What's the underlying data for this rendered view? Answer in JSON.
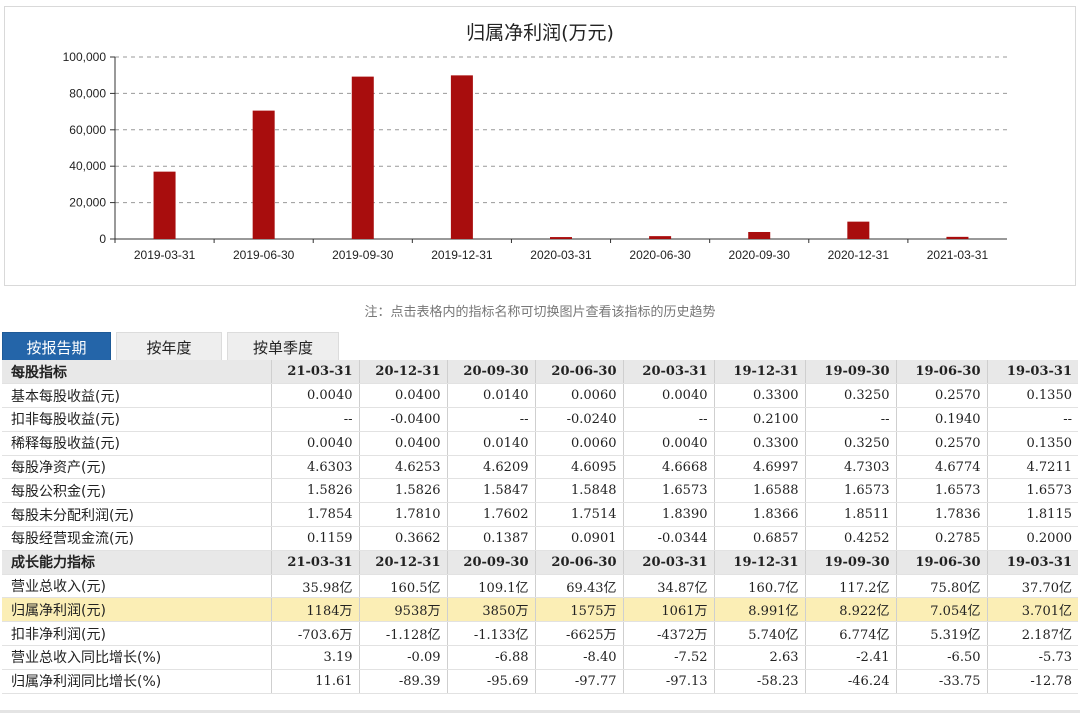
{
  "chart_data": {
    "type": "bar",
    "title": "归属净利润(万元)",
    "categories": [
      "2019-03-31",
      "2019-06-30",
      "2019-09-30",
      "2019-12-31",
      "2020-03-31",
      "2020-06-30",
      "2020-09-30",
      "2020-12-31",
      "2021-03-31"
    ],
    "values": [
      37010,
      70540,
      89220,
      89910,
      1061,
      1575,
      3850,
      9538,
      1184
    ],
    "yticks": [
      "0",
      "20,000",
      "40,000",
      "60,000",
      "80,000",
      "100,000"
    ],
    "ylim": [
      0,
      100000
    ],
    "grid": true,
    "bar_color": "#a80d0d"
  },
  "note": "注：点击表格内的指标名称可切换图片查看该指标的历史趋势",
  "tabs": [
    {
      "label": "按报告期",
      "active": true
    },
    {
      "label": "按年度",
      "active": false
    },
    {
      "label": "按单季度",
      "active": false
    }
  ],
  "table": {
    "rows": [
      {
        "type": "section",
        "cells": [
          "每股指标",
          "21-03-31",
          "20-12-31",
          "20-09-30",
          "20-06-30",
          "20-03-31",
          "19-12-31",
          "19-09-30",
          "19-06-30",
          "19-03-31"
        ]
      },
      {
        "type": "data",
        "cells": [
          "基本每股收益(元)",
          "0.0040",
          "0.0400",
          "0.0140",
          "0.0060",
          "0.0040",
          "0.3300",
          "0.3250",
          "0.2570",
          "0.1350"
        ]
      },
      {
        "type": "data",
        "cells": [
          "扣非每股收益(元)",
          "--",
          "-0.0400",
          "--",
          "-0.0240",
          "--",
          "0.2100",
          "--",
          "0.1940",
          "--"
        ]
      },
      {
        "type": "data",
        "cells": [
          "稀释每股收益(元)",
          "0.0040",
          "0.0400",
          "0.0140",
          "0.0060",
          "0.0040",
          "0.3300",
          "0.3250",
          "0.2570",
          "0.1350"
        ]
      },
      {
        "type": "data",
        "cells": [
          "每股净资产(元)",
          "4.6303",
          "4.6253",
          "4.6209",
          "4.6095",
          "4.6668",
          "4.6997",
          "4.7303",
          "4.6774",
          "4.7211"
        ]
      },
      {
        "type": "data",
        "cells": [
          "每股公积金(元)",
          "1.5826",
          "1.5826",
          "1.5847",
          "1.5848",
          "1.6573",
          "1.6588",
          "1.6573",
          "1.6573",
          "1.6573"
        ]
      },
      {
        "type": "data",
        "cells": [
          "每股未分配利润(元)",
          "1.7854",
          "1.7810",
          "1.7602",
          "1.7514",
          "1.8390",
          "1.8366",
          "1.8511",
          "1.7836",
          "1.8115"
        ]
      },
      {
        "type": "data",
        "cells": [
          "每股经营现金流(元)",
          "0.1159",
          "0.3662",
          "0.1387",
          "0.0901",
          "-0.0344",
          "0.6857",
          "0.4252",
          "0.2785",
          "0.2000"
        ]
      },
      {
        "type": "section",
        "cells": [
          "成长能力指标",
          "21-03-31",
          "20-12-31",
          "20-09-30",
          "20-06-30",
          "20-03-31",
          "19-12-31",
          "19-09-30",
          "19-06-30",
          "19-03-31"
        ]
      },
      {
        "type": "data",
        "cells": [
          "营业总收入(元)",
          "35.98亿",
          "160.5亿",
          "109.1亿",
          "69.43亿",
          "34.87亿",
          "160.7亿",
          "117.2亿",
          "75.80亿",
          "37.70亿"
        ]
      },
      {
        "type": "highlight",
        "cells": [
          "归属净利润(元)",
          "1184万",
          "9538万",
          "3850万",
          "1575万",
          "1061万",
          "8.991亿",
          "8.922亿",
          "7.054亿",
          "3.701亿"
        ]
      },
      {
        "type": "data",
        "cells": [
          "扣非净利润(元)",
          "-703.6万",
          "-1.128亿",
          "-1.133亿",
          "-6625万",
          "-4372万",
          "5.740亿",
          "6.774亿",
          "5.319亿",
          "2.187亿"
        ]
      },
      {
        "type": "data",
        "cells": [
          "营业总收入同比增长(%)",
          "3.19",
          "-0.09",
          "-6.88",
          "-8.40",
          "-7.52",
          "2.63",
          "-2.41",
          "-6.50",
          "-5.73"
        ]
      },
      {
        "type": "data",
        "cells": [
          "归属净利润同比增长(%)",
          "11.61",
          "-89.39",
          "-95.69",
          "-97.77",
          "-97.13",
          "-58.23",
          "-46.24",
          "-33.75",
          "-12.78"
        ]
      }
    ]
  }
}
